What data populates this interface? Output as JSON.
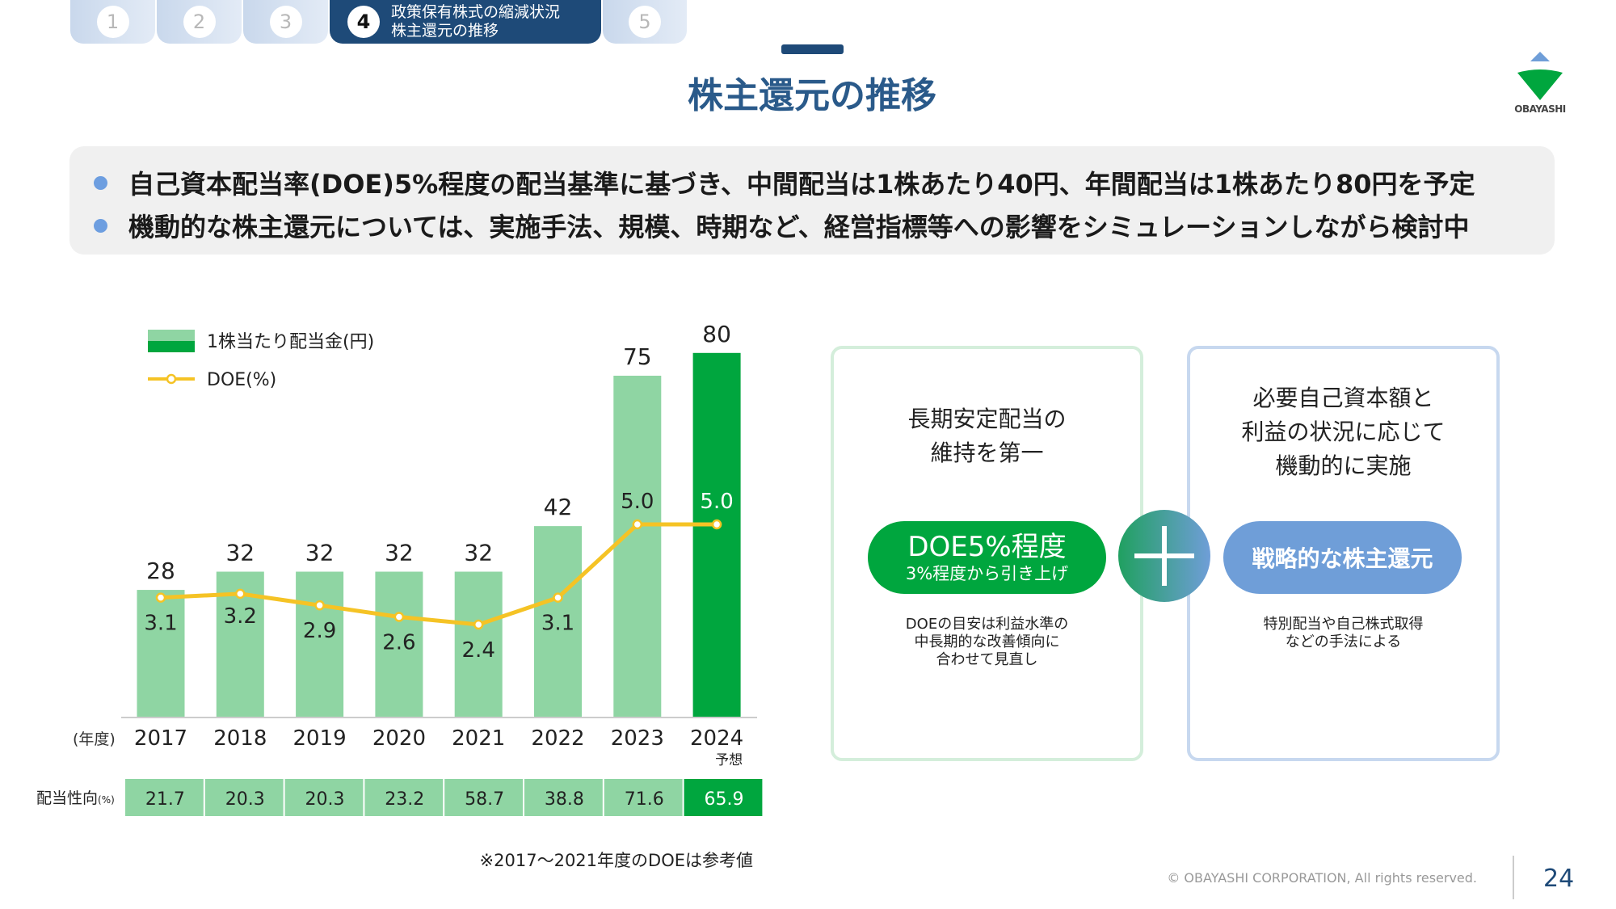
{
  "nav": {
    "tabs": [
      {
        "num": "1"
      },
      {
        "num": "2"
      },
      {
        "num": "3"
      },
      {
        "num": "4",
        "line1": "政策保有株式の縮減状況",
        "line2": "株主還元の推移",
        "active": true
      },
      {
        "num": "5"
      }
    ]
  },
  "header": {
    "title": "株主還元の推移",
    "logo_text": "OBAYASHI"
  },
  "bullets": [
    "自己資本配当率(DOE)5%程度の配当基準に基づき、中間配当は1株あたり40円、年間配当は1株あたり80円を予定",
    "機動的な株主還元については、実施手法、規模、時期など、経営指標等への影響をシミュレーションしながら検討中"
  ],
  "chart_data": {
    "type": "bar",
    "categories": [
      "2017",
      "2018",
      "2019",
      "2020",
      "2021",
      "2022",
      "2023",
      "2024"
    ],
    "category_sublabels": {
      "2024": "予想"
    },
    "x_unit_label": "(年度)",
    "series": [
      {
        "name": "1株当たり配当金(円)",
        "type": "bar",
        "values": [
          28,
          32,
          32,
          32,
          32,
          42,
          75,
          80
        ],
        "color": "#8fd5a3",
        "forecast_color": "#00a63e"
      },
      {
        "name": "DOE(%)",
        "type": "line",
        "values": [
          3.1,
          3.2,
          2.9,
          2.6,
          2.4,
          3.1,
          5.0,
          5.0
        ],
        "color": "#f5c325"
      }
    ],
    "payout_table": {
      "label": "配当性向",
      "unit": "(%)",
      "values": [
        "21.7",
        "20.3",
        "20.3",
        "23.2",
        "58.7",
        "38.8",
        "71.6",
        "65.9"
      ]
    },
    "footnote": "※2017～2021年度のDOEは参考値",
    "grid": false,
    "legend": "top-left"
  },
  "policy": {
    "left": {
      "head1": "長期安定配当の",
      "head2": "維持を第一",
      "pill_main": "DOE5%程度",
      "pill_sub": "3%程度から引き上げ",
      "note1": "DOEの目安は利益水準の",
      "note2": "中長期的な改善傾向に",
      "note3": "合わせて見直し",
      "color": "#00a63e"
    },
    "right": {
      "head1": "必要自己資本額と",
      "head2": "利益の状況に応じて",
      "head3": "機動的に実施",
      "pill_main": "戦略的な株主還元",
      "note1": "特別配当や自己株式取得",
      "note2": "などの手法による",
      "color": "#6f9ed8"
    }
  },
  "footer": {
    "copyright": "© OBAYASHI CORPORATION, All rights reserved.",
    "page": "24"
  }
}
